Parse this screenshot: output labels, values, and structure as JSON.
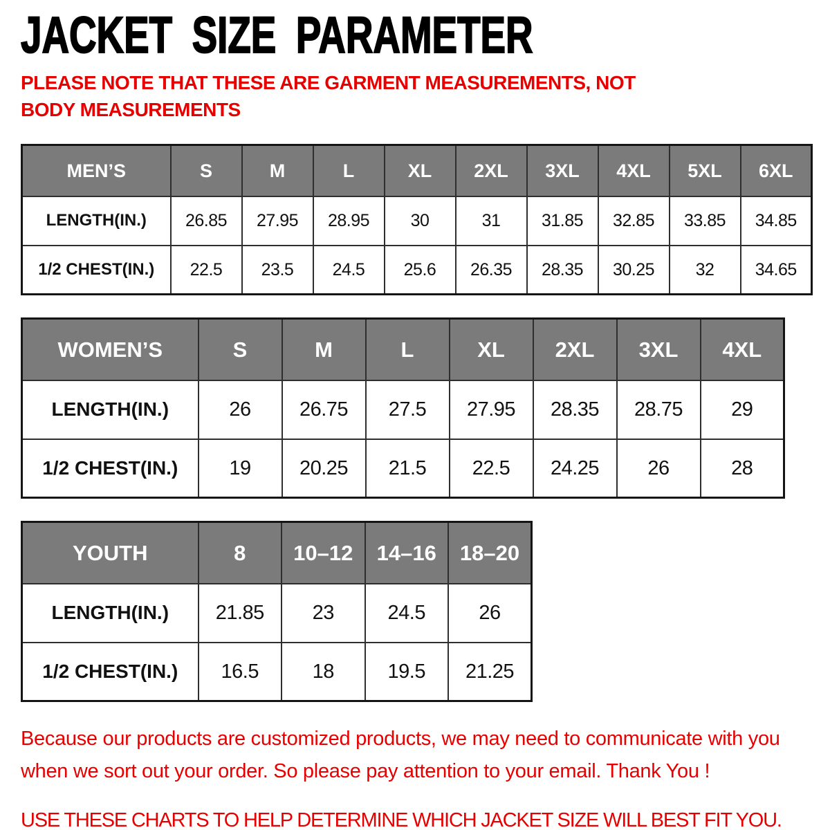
{
  "page": {
    "title": "JACKET SIZE PARAMETER",
    "note": "PLEASE NOTE THAT THESE ARE GARMENT MEASUREMENTS, NOT BODY MEASUREMENTS",
    "footer_line1": "Because our products are customized products, we may need to communicate with you when we sort out your order. So please pay attention to your email. Thank You !",
    "footer_line2": "USE THESE CHARTS TO HELP DETERMINE WHICH JACKET SIZE WILL BEST FIT YOU.",
    "colors": {
      "accent_red": "#e60000",
      "header_gray": "#7b7b7b",
      "border_dark": "#2e2e2e",
      "text_black": "#000000"
    }
  },
  "tables": {
    "mens": {
      "name": "MEN’S",
      "sizes": [
        "S",
        "M",
        "L",
        "XL",
        "2XL",
        "3XL",
        "4XL",
        "5XL",
        "6XL"
      ],
      "rows": [
        {
          "label": "LENGTH(IN.)",
          "values": [
            "26.85",
            "27.95",
            "28.95",
            "30",
            "31",
            "31.85",
            "32.85",
            "33.85",
            "34.85"
          ]
        },
        {
          "label": "1/2 CHEST(IN.)",
          "values": [
            "22.5",
            "23.5",
            "24.5",
            "25.6",
            "26.35",
            "28.35",
            "30.25",
            "32",
            "34.65"
          ]
        }
      ]
    },
    "womens": {
      "name": "WOMEN’S",
      "sizes": [
        "S",
        "M",
        "L",
        "XL",
        "2XL",
        "3XL",
        "4XL"
      ],
      "rows": [
        {
          "label": "LENGTH(IN.)",
          "values": [
            "26",
            "26.75",
            "27.5",
            "27.95",
            "28.35",
            "28.75",
            "29"
          ]
        },
        {
          "label": "1/2 CHEST(IN.)",
          "values": [
            "19",
            "20.25",
            "21.5",
            "22.5",
            "24.25",
            "26",
            "28"
          ]
        }
      ]
    },
    "youth": {
      "name": "YOUTH",
      "sizes": [
        "8",
        "10–12",
        "14–16",
        "18–20"
      ],
      "rows": [
        {
          "label": "LENGTH(IN.)",
          "values": [
            "21.85",
            "23",
            "24.5",
            "26"
          ]
        },
        {
          "label": "1/2 CHEST(IN.)",
          "values": [
            "16.5",
            "18",
            "19.5",
            "21.25"
          ]
        }
      ]
    }
  }
}
